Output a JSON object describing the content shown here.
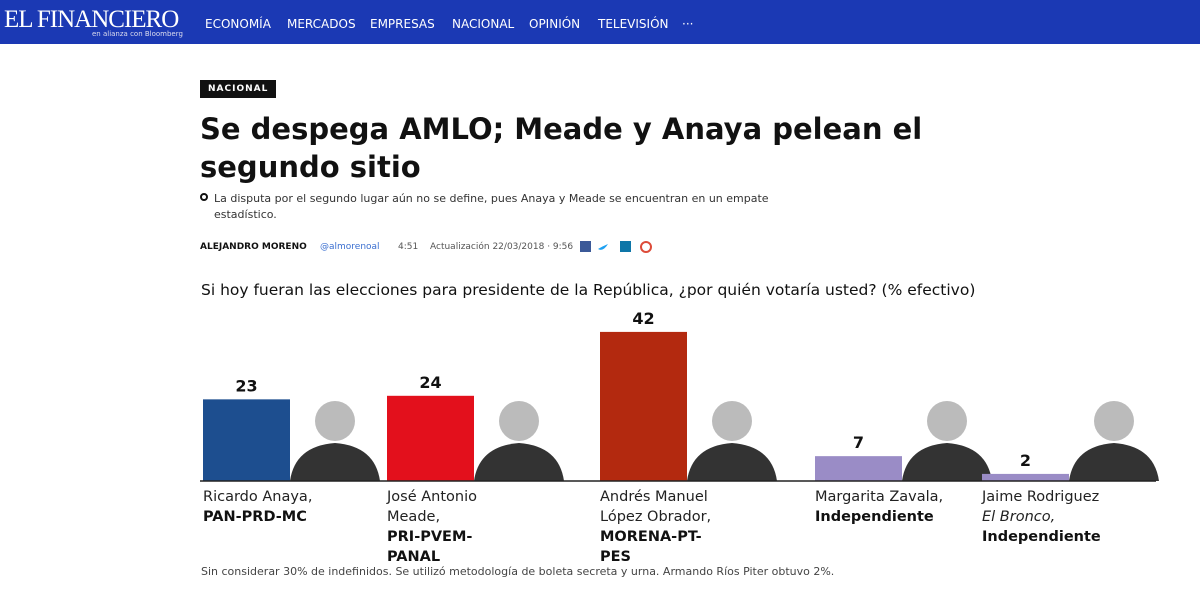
{
  "site": {
    "logo": "EL FINANCIERO",
    "partner": "en alianza con Bloomberg",
    "nav": [
      "ECONOMÍA",
      "MERCADOS",
      "EMPRESAS",
      "NACIONAL",
      "OPINIÓN",
      "TELEVISIÓN",
      "···"
    ]
  },
  "article": {
    "section": "NACIONAL",
    "title": "Se despega AMLO; Meade y Anaya pelean el segundo sitio",
    "summary": "La disputa por el segundo lugar aún no se define, pues Anaya y Meade se encuentran en un empate estadístico.",
    "author": "ALEJANDRO MORENO",
    "handle": "@almorenoal",
    "time": "4:51",
    "updated": "Actualización 22/03/2018 · 9:56"
  },
  "chart_data": {
    "type": "bar",
    "title": "Si hoy fueran las elecciones para presidente de la República, ¿por quién votaría usted? (% efectivo)",
    "categories": [
      {
        "name": "Ricardo Anaya,",
        "party": "PAN-PRD-MC"
      },
      {
        "name": "José Antonio Meade,",
        "party": "PRI-PVEM-PANAL"
      },
      {
        "name": "Andrés Manuel López Obrador,",
        "party": "MORENA-PT-PES"
      },
      {
        "name": "Margarita Zavala,",
        "party": "Independiente"
      },
      {
        "name": "Jaime Rodriguez",
        "alias": "El Bronco,",
        "party": "Independiente"
      }
    ],
    "values": [
      23,
      24,
      42,
      7,
      2
    ],
    "colors": [
      "#1d4e8f",
      "#e3101c",
      "#b3290f",
      "#9a8cc6",
      "#9a8cc6"
    ],
    "note": "Sin considerar 30% de indefinidos. Se utilizó metodología de boleta secreta y urna. Armando Ríos Piter obtuvo 2%."
  }
}
